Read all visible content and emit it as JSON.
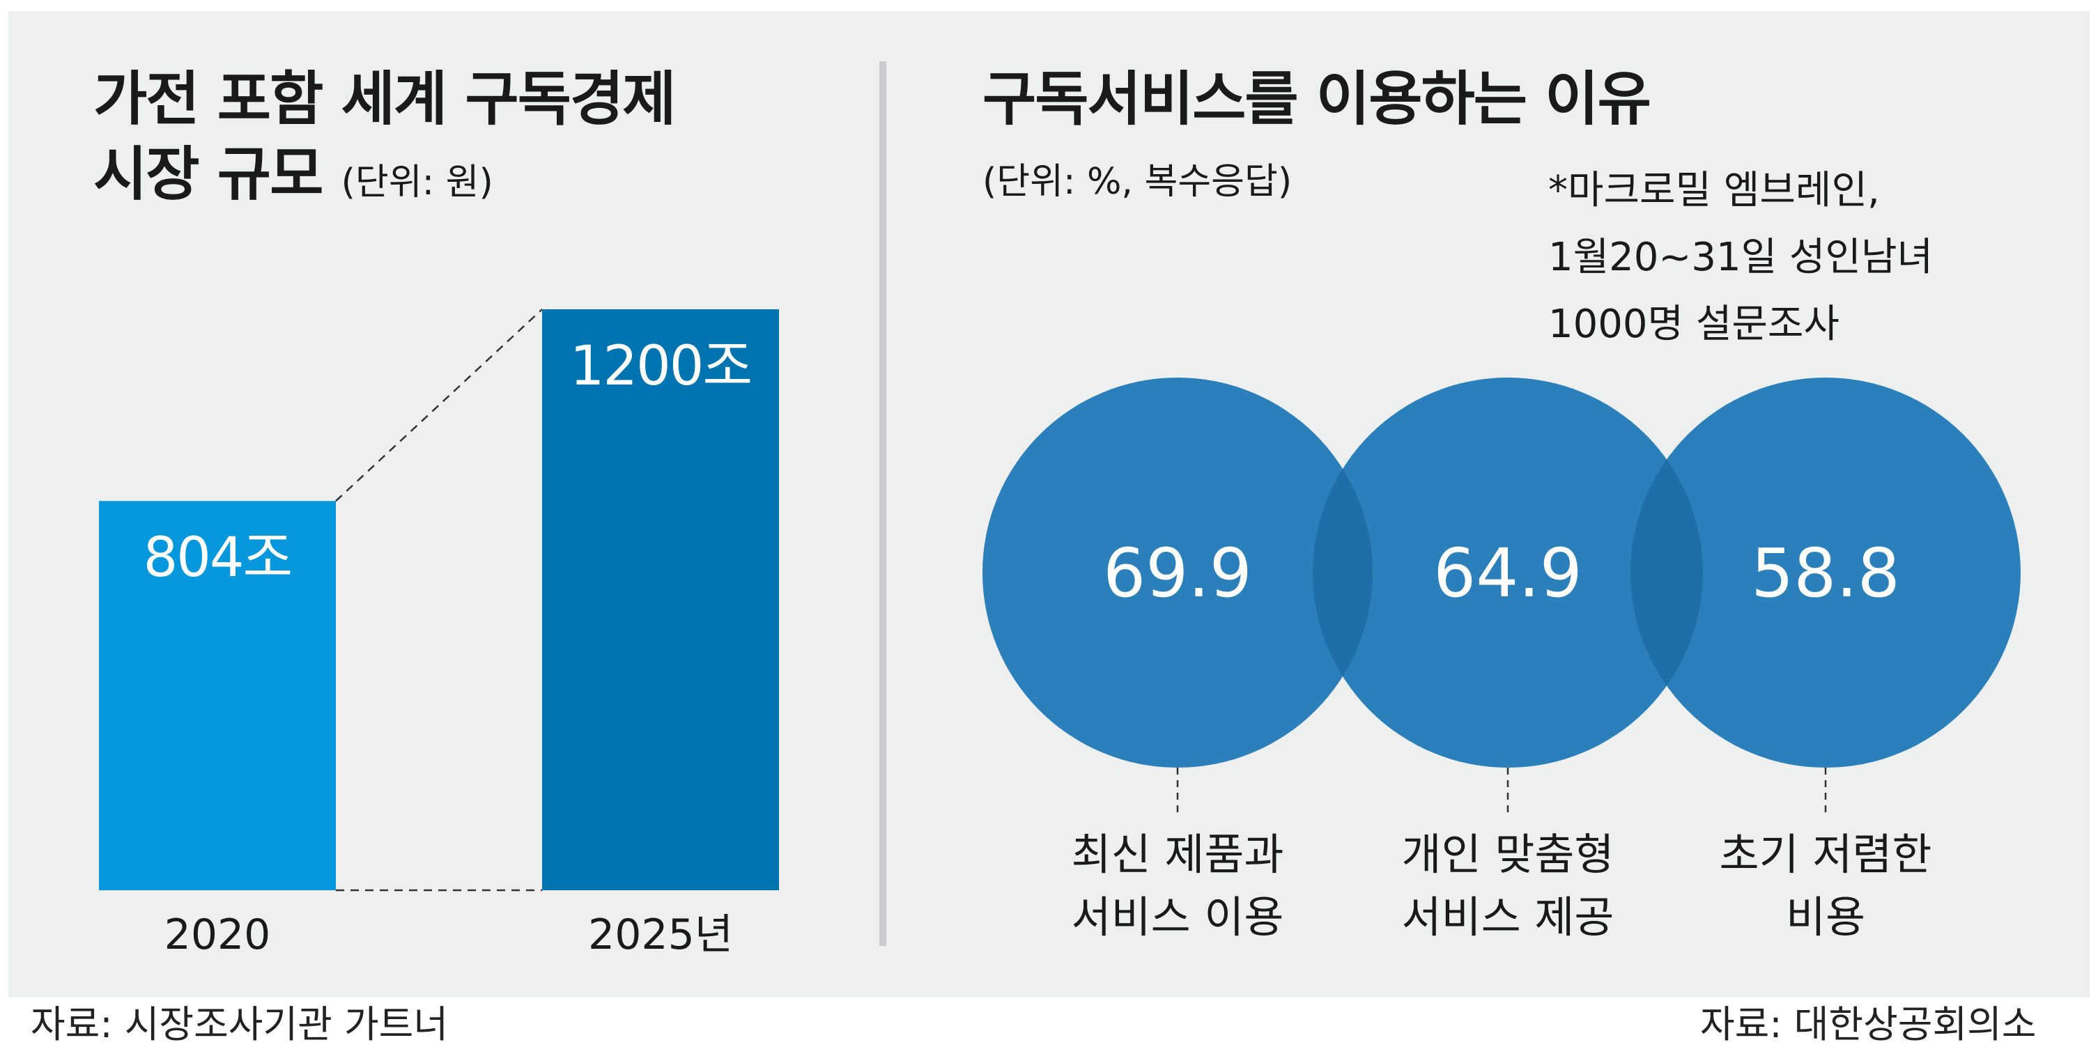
{
  "left": {
    "title_line1": "가전 포함 세계 구독경제",
    "title_line2": "시장 규모",
    "unit": "(단위: 원)",
    "source": "자료: 시장조사기관 가트너"
  },
  "right": {
    "title": "구독서비스를 이용하는 이유",
    "unit": "(단위: %, 복수응답)",
    "note": [
      "*마크로밀 엠브레인,",
      "1월20~31일 성인남녀",
      "1000명 설문조사"
    ],
    "source": "자료: 대한상공회의소"
  },
  "chart_data": [
    {
      "type": "bar",
      "title": "가전 포함 세계 구독경제 시장 규모",
      "unit": "(단위: 원)",
      "categories": [
        "2020",
        "2025년"
      ],
      "values": [
        804,
        1200
      ],
      "value_labels": [
        "804조",
        "1200조"
      ],
      "colors": [
        "#0697dc",
        "#0074b1"
      ],
      "ylim": [
        0,
        1200
      ],
      "grid": false
    },
    {
      "type": "bubble",
      "title": "구독서비스를 이용하는 이유",
      "unit": "(단위: %, 복수응답)",
      "values": [
        69.9,
        64.9,
        58.8
      ],
      "value_labels": [
        "69.9",
        "64.9",
        "58.8"
      ],
      "categories": [
        [
          "최신 제품과",
          "서비스 이용"
        ],
        [
          "개인 맞춤형",
          "서비스 제공"
        ],
        [
          "초기 저렴한",
          "비용"
        ]
      ],
      "colors": [
        "#2b7fba",
        "#1e6fa8"
      ]
    }
  ]
}
